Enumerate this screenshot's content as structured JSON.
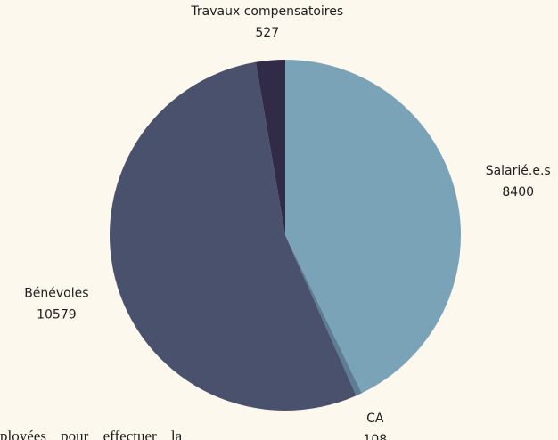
{
  "chart_data": {
    "type": "pie",
    "categories": [
      "Salarié.e.s",
      "CA",
      "Bénévoles",
      "Travaux compensatoires"
    ],
    "values": [
      8400,
      108,
      10579,
      527
    ],
    "colors": [
      "#7aa3b8",
      "#5d7d97",
      "#4a516d",
      "#312b47"
    ]
  },
  "text_fragment": "ployées pour effectuer la"
}
